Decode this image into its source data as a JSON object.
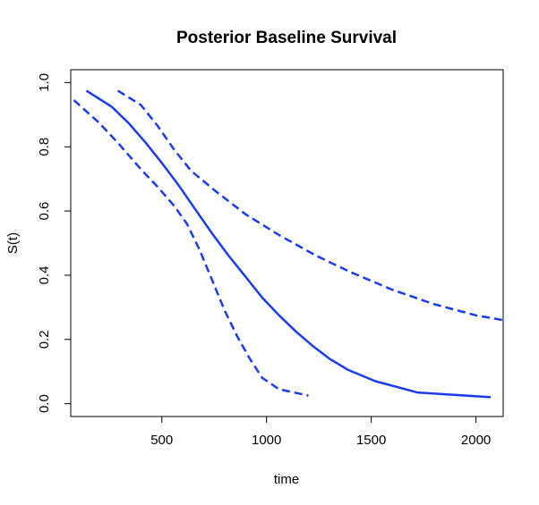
{
  "chart_data": {
    "type": "line",
    "title": "Posterior Baseline Survival",
    "xlabel": "time",
    "ylabel": "S(t)",
    "xlim": [
      65,
      2130
    ],
    "ylim": [
      -0.04,
      1.04
    ],
    "x_ticks": [
      500,
      1000,
      1500,
      2000
    ],
    "y_ticks": [
      0.0,
      0.2,
      0.4,
      0.6,
      0.8,
      1.0
    ],
    "x_tick_labels": [
      "500",
      "1000",
      "1500",
      "2000"
    ],
    "y_tick_labels": [
      "0.0",
      "0.2",
      "0.4",
      "0.6",
      "0.8",
      "1.0"
    ],
    "color": "#1a3cf0",
    "grid": false,
    "series": [
      {
        "style": "solid",
        "x": [
          140,
          260,
          340,
          420,
          500,
          580,
          660,
          740,
          820,
          900,
          980,
          1060,
          1140,
          1220,
          1300,
          1390,
          1520,
          1720,
          2070
        ],
        "y": [
          0.975,
          0.925,
          0.875,
          0.815,
          0.75,
          0.68,
          0.605,
          0.53,
          0.46,
          0.395,
          0.33,
          0.275,
          0.225,
          0.18,
          0.14,
          0.105,
          0.07,
          0.035,
          0.02
        ]
      },
      {
        "style": "dashed",
        "x": [
          290,
          400,
          480,
          560,
          640,
          760,
          900,
          1060,
          1240,
          1400,
          1600,
          1800,
          2000,
          2130
        ],
        "y": [
          0.975,
          0.93,
          0.865,
          0.79,
          0.725,
          0.66,
          0.59,
          0.525,
          0.46,
          0.41,
          0.355,
          0.31,
          0.275,
          0.26
        ]
      },
      {
        "style": "dashed",
        "x": [
          80,
          200,
          300,
          400,
          480,
          560,
          620,
          680,
          740,
          800,
          860,
          920,
          980,
          1060,
          1200
        ],
        "y": [
          0.945,
          0.875,
          0.805,
          0.73,
          0.675,
          0.615,
          0.56,
          0.48,
          0.385,
          0.29,
          0.21,
          0.14,
          0.08,
          0.045,
          0.025
        ]
      }
    ]
  }
}
